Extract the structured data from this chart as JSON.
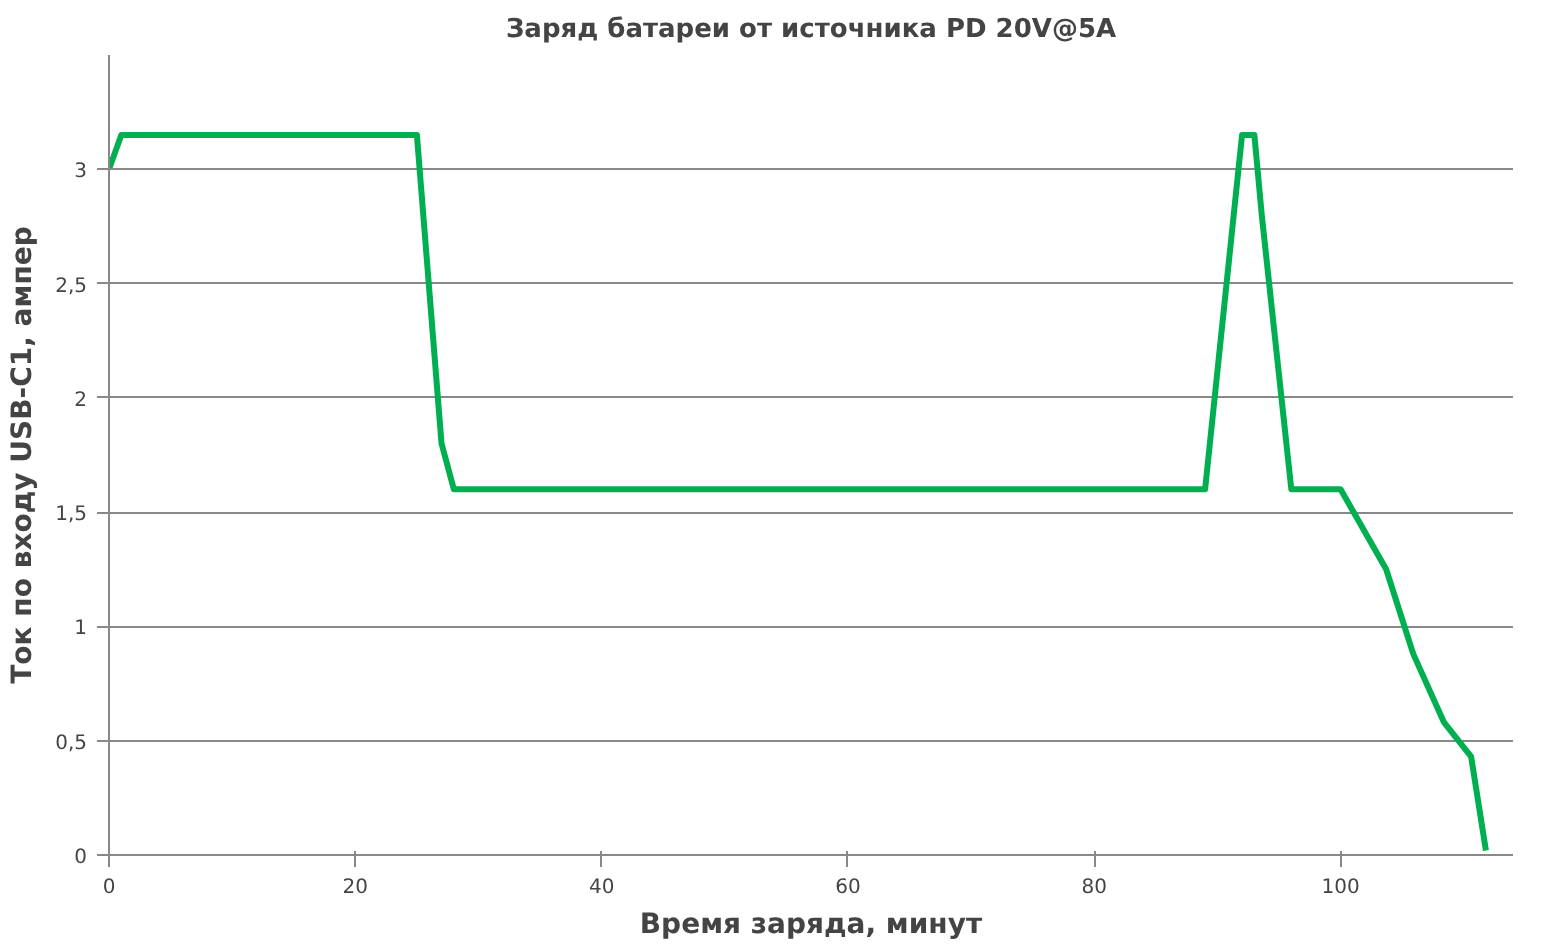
{
  "chart_data": {
    "type": "line",
    "title": "Заряд батареи от источника PD 20V@5A",
    "xlabel": "Время заряда, минут",
    "ylabel": "Ток по входу USB-C1, ампер",
    "x": [
      0,
      1,
      25,
      27,
      28,
      89,
      92,
      93,
      93.6,
      96,
      100,
      103.7,
      105.9,
      108.4,
      110.6,
      111.8
    ],
    "series": [
      {
        "color": "#00b050",
        "values": [
          3.0,
          3.15,
          3.15,
          1.8,
          1.6,
          1.6,
          3.15,
          3.15,
          2.8,
          1.6,
          1.6,
          1.25,
          0.88,
          0.58,
          0.43,
          0.02
        ]
      }
    ],
    "xlim": [
      0,
      114
    ],
    "xticks": [
      0,
      20,
      40,
      60,
      80,
      100
    ],
    "ylim": [
      0,
      3.5
    ],
    "yticks": [
      {
        "value": 0,
        "label": "0"
      },
      {
        "value": 0.5,
        "label": "0,5"
      },
      {
        "value": 1,
        "label": "1"
      },
      {
        "value": 1.5,
        "label": "1,5"
      },
      {
        "value": 2,
        "label": "2"
      },
      {
        "value": 2.5,
        "label": "2,5"
      },
      {
        "value": 3,
        "label": "3"
      }
    ],
    "grid": "y",
    "marker": "none",
    "line_style": "solid"
  }
}
